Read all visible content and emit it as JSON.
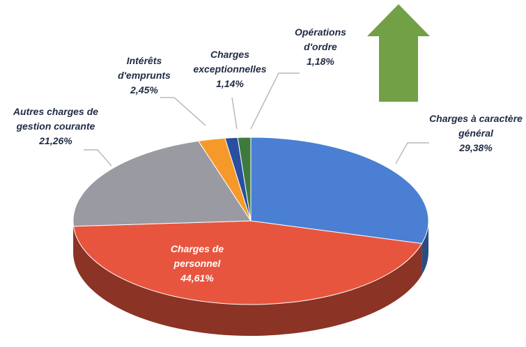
{
  "chart_data": {
    "type": "pie",
    "categories": [
      "Charges à caractère général",
      "Charges de personnel",
      "Autres charges de gestion courante",
      "Intérêts d'emprunts",
      "Charges exceptionnelles",
      "Opérations d'ordre"
    ],
    "values": [
      29.38,
      44.61,
      21.26,
      2.45,
      1.14,
      1.18
    ],
    "value_labels": [
      "29,38%",
      "44,61%",
      "21,26%",
      "2,45%",
      "1,14%",
      "1,18%"
    ],
    "colors": [
      "#4a7fd4",
      "#e8553e",
      "#9a9aa2",
      "#f59a2a",
      "#2a4fa0",
      "#3e7a3c"
    ]
  }
}
